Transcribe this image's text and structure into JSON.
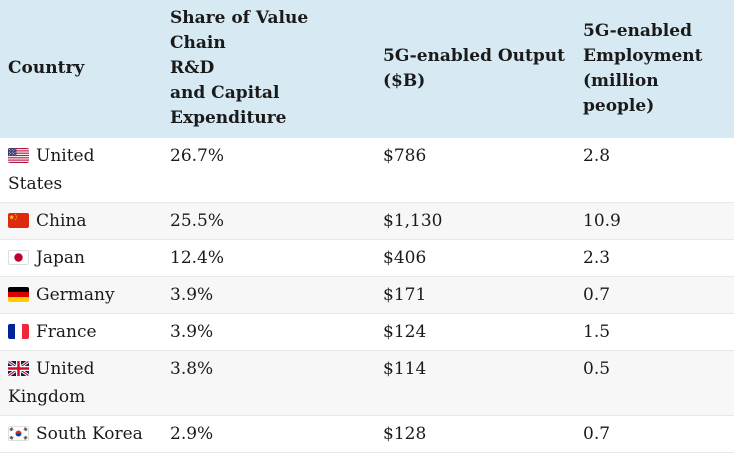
{
  "table": {
    "headers": [
      {
        "label": "Country"
      },
      {
        "label": "Share of Value Chain\nR&D\nand Capital\nExpenditure"
      },
      {
        "label": "5G-enabled Output\n($B)"
      },
      {
        "label": "5G-enabled\nEmployment\n(million people)"
      }
    ],
    "rows": [
      {
        "country": "United States",
        "flag": "us-flag-icon",
        "share": "26.7%",
        "output": "$786",
        "employment": "2.8"
      },
      {
        "country": "China",
        "flag": "china-flag-icon",
        "share": "25.5%",
        "output": "$1,130",
        "employment": "10.9"
      },
      {
        "country": "Japan",
        "flag": "japan-flag-icon",
        "share": "12.4%",
        "output": "$406",
        "employment": "2.3"
      },
      {
        "country": "Germany",
        "flag": "germany-flag-icon",
        "share": "3.9%",
        "output": "$171",
        "employment": "0.7"
      },
      {
        "country": "France",
        "flag": "france-flag-icon",
        "share": "3.9%",
        "output": "$124",
        "employment": "1.5"
      },
      {
        "country": "United Kingdom",
        "flag": "uk-flag-icon",
        "share": "3.8%",
        "output": "$114",
        "employment": "0.5"
      },
      {
        "country": "South Korea",
        "flag": "south-korea-flag-icon",
        "share": "2.9%",
        "output": "$128",
        "employment": "0.7"
      }
    ]
  },
  "chart_data": {
    "type": "table",
    "title": "",
    "columns": [
      "Country",
      "Share of Value Chain R&D and Capital Expenditure",
      "5G-enabled Output ($B)",
      "5G-enabled Employment (million people)"
    ],
    "rows": [
      [
        "United States",
        "26.7%",
        "$786",
        "2.8"
      ],
      [
        "China",
        "25.5%",
        "$1,130",
        "10.9"
      ],
      [
        "Japan",
        "12.4%",
        "$406",
        "2.3"
      ],
      [
        "Germany",
        "3.9%",
        "$171",
        "0.7"
      ],
      [
        "France",
        "3.9%",
        "$124",
        "1.5"
      ],
      [
        "United Kingdom",
        "3.8%",
        "$114",
        "0.5"
      ],
      [
        "South Korea",
        "2.9%",
        "$128",
        "0.7"
      ]
    ],
    "series": [
      {
        "name": "Share of Value Chain R&D and Capital Expenditure (%)",
        "values": [
          26.7,
          25.5,
          12.4,
          3.9,
          3.9,
          3.8,
          2.9
        ]
      },
      {
        "name": "5G-enabled Output ($B)",
        "values": [
          786,
          1130,
          406,
          171,
          124,
          114,
          128
        ]
      },
      {
        "name": "5G-enabled Employment (million people)",
        "values": [
          2.8,
          10.9,
          2.3,
          0.7,
          1.5,
          0.5,
          0.7
        ]
      }
    ],
    "categories": [
      "United States",
      "China",
      "Japan",
      "Germany",
      "France",
      "United Kingdom",
      "South Korea"
    ]
  },
  "colors": {
    "header_bg": "#d7eaf3",
    "alt_row_bg": "#f7f7f7",
    "row_border": "#e8e8e8",
    "text": "#1a1a1a"
  }
}
